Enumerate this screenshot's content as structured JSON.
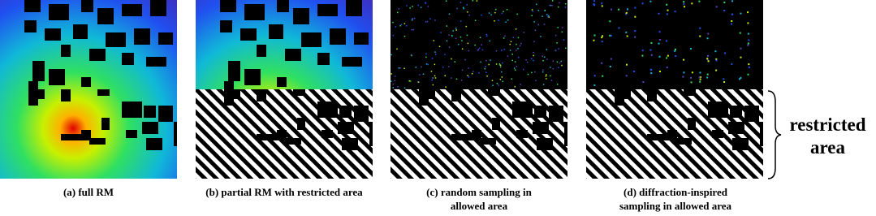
{
  "panels": [
    {
      "caption": "(a) full RM"
    },
    {
      "caption": "(b) partial RM with restricted area"
    },
    {
      "caption": "(c) random sampling in allowed area"
    },
    {
      "caption": "(d) diffraction-inspired sampling in allowed area"
    }
  ],
  "annotation": "restricted area"
}
